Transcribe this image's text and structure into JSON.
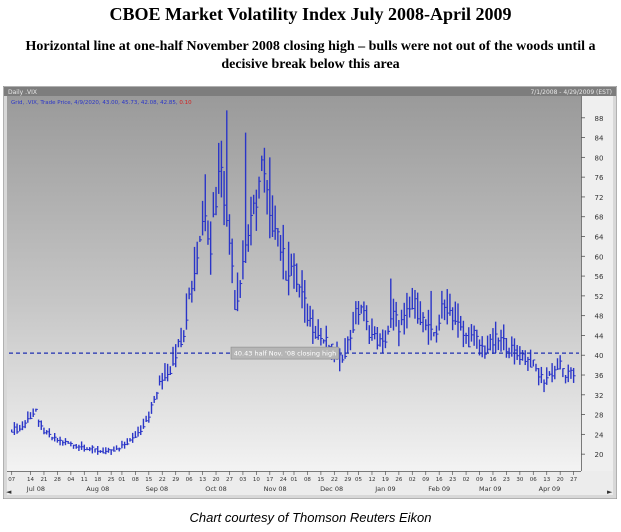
{
  "title": "CBOE Market Volatility Index July 2008-April 2009",
  "subtitle": "Horizontal line at one-half November 2008 closing high – bulls were not out of the woods until a decisive break below this area",
  "credit": "Chart courtesy of Thomson Reuters Eikon",
  "chart_header": {
    "left": "Daily .VIX",
    "right": "7/1/2008 - 4/29/2009 (EST)",
    "legend": "Grid, .VIX, Trade Price, 4/9/2020, 43.00, 45.73, 42.08, 42.85, ",
    "legend_change": "0.10"
  },
  "colors": {
    "price": "#2a35c8",
    "reference": "#1f2fb0",
    "change": "#d22020",
    "background_top": "#9a9a9a",
    "background_mid": "#c4c4c4",
    "background_bottom": "#f2f2f2"
  },
  "chart_data": {
    "type": "line",
    "title": "",
    "xlabel": "",
    "ylabel": "",
    "y_axis_side": "right",
    "ylim": [
      17,
      92
    ],
    "y_ticks": [
      20,
      24,
      28,
      32,
      36,
      40,
      44,
      48,
      52,
      56,
      60,
      64,
      68,
      72,
      76,
      80,
      84,
      88
    ],
    "x_day_ticks": [
      {
        "t": 0,
        "label": "07"
      },
      {
        "t": 7,
        "label": "14"
      },
      {
        "t": 12,
        "label": "21"
      },
      {
        "t": 17,
        "label": "28"
      },
      {
        "t": 22,
        "label": "04"
      },
      {
        "t": 27,
        "label": "11"
      },
      {
        "t": 32,
        "label": "18"
      },
      {
        "t": 37,
        "label": "25"
      },
      {
        "t": 41,
        "label": "01"
      },
      {
        "t": 46,
        "label": "08"
      },
      {
        "t": 51,
        "label": "15"
      },
      {
        "t": 56,
        "label": "22"
      },
      {
        "t": 61,
        "label": "29"
      },
      {
        "t": 66,
        "label": "06"
      },
      {
        "t": 71,
        "label": "13"
      },
      {
        "t": 76,
        "label": "20"
      },
      {
        "t": 81,
        "label": "27"
      },
      {
        "t": 86,
        "label": "03"
      },
      {
        "t": 91,
        "label": "10"
      },
      {
        "t": 96,
        "label": "17"
      },
      {
        "t": 101,
        "label": "24"
      },
      {
        "t": 105,
        "label": "01"
      },
      {
        "t": 110,
        "label": "08"
      },
      {
        "t": 115,
        "label": "15"
      },
      {
        "t": 120,
        "label": "22"
      },
      {
        "t": 125,
        "label": "29"
      },
      {
        "t": 129,
        "label": "05"
      },
      {
        "t": 134,
        "label": "12"
      },
      {
        "t": 139,
        "label": "19"
      },
      {
        "t": 144,
        "label": "26"
      },
      {
        "t": 149,
        "label": "02"
      },
      {
        "t": 154,
        "label": "09"
      },
      {
        "t": 159,
        "label": "16"
      },
      {
        "t": 164,
        "label": "23"
      },
      {
        "t": 169,
        "label": "02"
      },
      {
        "t": 174,
        "label": "09"
      },
      {
        "t": 179,
        "label": "16"
      },
      {
        "t": 184,
        "label": "23"
      },
      {
        "t": 189,
        "label": "30"
      },
      {
        "t": 194,
        "label": "06"
      },
      {
        "t": 199,
        "label": "13"
      },
      {
        "t": 204,
        "label": "20"
      },
      {
        "t": 209,
        "label": "27"
      }
    ],
    "x_month_labels": [
      {
        "t": 9,
        "label": "Jul 08"
      },
      {
        "t": 32,
        "label": "Aug 08"
      },
      {
        "t": 54,
        "label": "Sep 08"
      },
      {
        "t": 76,
        "label": "Oct 08"
      },
      {
        "t": 98,
        "label": "Nov 08"
      },
      {
        "t": 119,
        "label": "Dec 08"
      },
      {
        "t": 139,
        "label": "Jan 09"
      },
      {
        "t": 159,
        "label": "Feb 09"
      },
      {
        "t": 178,
        "label": "Mar 09"
      },
      {
        "t": 200,
        "label": "Apr 09"
      }
    ],
    "t_range": [
      -1,
      211
    ],
    "series": [
      {
        "style": "high-low bars",
        "anchors": [
          [
            0,
            25
          ],
          [
            3,
            25
          ],
          [
            6,
            27
          ],
          [
            9,
            29
          ],
          [
            10,
            26
          ],
          [
            13,
            24
          ],
          [
            16,
            23
          ],
          [
            19,
            22.5
          ],
          [
            22,
            22
          ],
          [
            26,
            21.5
          ],
          [
            30,
            21
          ],
          [
            34,
            20.5
          ],
          [
            37,
            20.5
          ],
          [
            40,
            21
          ],
          [
            42,
            22
          ],
          [
            45,
            23
          ],
          [
            48,
            25
          ],
          [
            51,
            28
          ],
          [
            53,
            31
          ],
          [
            55,
            34
          ],
          [
            57,
            36
          ],
          [
            59,
            37
          ],
          [
            60,
            39
          ],
          [
            62,
            42
          ],
          [
            64,
            45
          ],
          [
            66,
            52
          ],
          [
            68,
            57
          ],
          [
            70,
            64
          ],
          [
            72,
            70
          ],
          [
            74,
            62
          ],
          [
            75,
            68
          ],
          [
            77,
            76
          ],
          [
            78,
            80
          ],
          [
            80,
            66
          ],
          [
            82,
            60
          ],
          [
            83,
            50
          ],
          [
            85,
            55
          ],
          [
            87,
            63
          ],
          [
            89,
            66
          ],
          [
            91,
            72
          ],
          [
            93,
            78
          ],
          [
            95,
            72
          ],
          [
            96,
            66
          ],
          [
            98,
            68
          ],
          [
            100,
            62
          ],
          [
            102,
            57
          ],
          [
            104,
            58
          ],
          [
            106,
            55
          ],
          [
            108,
            52
          ],
          [
            110,
            48
          ],
          [
            112,
            46
          ],
          [
            114,
            44
          ],
          [
            116,
            43
          ],
          [
            118,
            42
          ],
          [
            120,
            40
          ],
          [
            122,
            39
          ],
          [
            124,
            41
          ],
          [
            126,
            44
          ],
          [
            128,
            48
          ],
          [
            130,
            50
          ],
          [
            132,
            46
          ],
          [
            134,
            44
          ],
          [
            136,
            43
          ],
          [
            138,
            42
          ],
          [
            140,
            45
          ],
          [
            142,
            48
          ],
          [
            144,
            46
          ],
          [
            146,
            47
          ],
          [
            148,
            49
          ],
          [
            150,
            50
          ],
          [
            152,
            48
          ],
          [
            154,
            46
          ],
          [
            156,
            44
          ],
          [
            158,
            45
          ],
          [
            160,
            49
          ],
          [
            162,
            50
          ],
          [
            164,
            48
          ],
          [
            166,
            46
          ],
          [
            168,
            44
          ],
          [
            170,
            43
          ],
          [
            172,
            44
          ],
          [
            174,
            42
          ],
          [
            176,
            41
          ],
          [
            178,
            42
          ],
          [
            180,
            43
          ],
          [
            182,
            43
          ],
          [
            184,
            42
          ],
          [
            186,
            41
          ],
          [
            188,
            40
          ],
          [
            190,
            40
          ],
          [
            192,
            39
          ],
          [
            194,
            38
          ],
          [
            196,
            36
          ],
          [
            198,
            35
          ],
          [
            200,
            36
          ],
          [
            202,
            37
          ],
          [
            204,
            38
          ],
          [
            206,
            36
          ],
          [
            208,
            36
          ],
          [
            209,
            36
          ]
        ],
        "spikes": [
          [
            80,
            89.5
          ],
          [
            87,
            85
          ],
          [
            96,
            80
          ],
          [
            141,
            55.5
          ],
          [
            156,
            53
          ],
          [
            134,
            44
          ],
          [
            172,
            46
          ]
        ]
      }
    ],
    "reference_line": {
      "value": 40.43,
      "label": "40.43 half Nov. '08 closing high"
    },
    "grid": false,
    "legend": "none"
  }
}
